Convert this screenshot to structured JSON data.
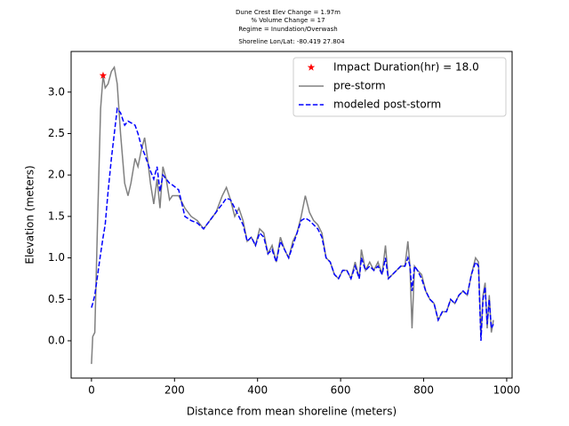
{
  "chart_data": {
    "type": "line",
    "title_lines": [
      "Dune Crest Elev Change = 1.97m",
      "% Volume Change = 17",
      "Regime = Inundation/Overwash",
      "Shoreline Lon/Lat: -80.419 27.804"
    ],
    "xlabel": "Distance from mean shoreline (meters)",
    "ylabel": "Elevation (meters)",
    "x": [
      0,
      3,
      8,
      15,
      22,
      28,
      33,
      40,
      48,
      55,
      62,
      70,
      80,
      88,
      95,
      105,
      112,
      120,
      128,
      135,
      142,
      150,
      158,
      165,
      172,
      180,
      188,
      195,
      210,
      225,
      240,
      255,
      270,
      285,
      300,
      315,
      325,
      335,
      345,
      355,
      365,
      375,
      385,
      395,
      405,
      415,
      425,
      435,
      445,
      455,
      465,
      475,
      485,
      495,
      505,
      515,
      525,
      535,
      545,
      555,
      565,
      575,
      585,
      595,
      605,
      615,
      625,
      635,
      645,
      650,
      660,
      670,
      680,
      690,
      700,
      708,
      715,
      725,
      735,
      745,
      755,
      762,
      767,
      772,
      778,
      785,
      795,
      805,
      815,
      825,
      835,
      845,
      855,
      865,
      875,
      885,
      895,
      905,
      915,
      925,
      932,
      938,
      943,
      948,
      953,
      958,
      963,
      968
    ],
    "series": [
      {
        "name": "pre-storm",
        "color": "#808080",
        "dash": false,
        "values": [
          -0.28,
          0.05,
          0.1,
          1.5,
          2.8,
          3.2,
          3.05,
          3.1,
          3.25,
          3.3,
          3.1,
          2.5,
          1.9,
          1.75,
          1.9,
          2.2,
          2.1,
          2.3,
          2.45,
          2.2,
          1.9,
          1.65,
          1.95,
          1.6,
          2.1,
          1.95,
          1.7,
          1.75,
          1.75,
          1.6,
          1.5,
          1.45,
          1.35,
          1.45,
          1.55,
          1.75,
          1.85,
          1.7,
          1.5,
          1.6,
          1.45,
          1.2,
          1.25,
          1.15,
          1.35,
          1.3,
          1.05,
          1.15,
          0.95,
          1.25,
          1.1,
          1.0,
          1.2,
          1.3,
          1.5,
          1.75,
          1.55,
          1.45,
          1.4,
          1.3,
          1.0,
          0.95,
          0.8,
          0.75,
          0.85,
          0.85,
          0.75,
          0.95,
          0.75,
          1.1,
          0.85,
          0.95,
          0.85,
          0.95,
          0.8,
          1.15,
          0.75,
          0.8,
          0.85,
          0.9,
          0.9,
          1.2,
          0.9,
          0.15,
          0.9,
          0.85,
          0.8,
          0.6,
          0.5,
          0.45,
          0.25,
          0.35,
          0.35,
          0.5,
          0.45,
          0.55,
          0.6,
          0.55,
          0.8,
          1.0,
          0.95,
          0.05,
          0.55,
          0.7,
          0.15,
          0.55,
          0.1,
          0.25
        ]
      },
      {
        "name": "modeled post-storm",
        "color": "#0000ff",
        "dash": true,
        "values": [
          0.4,
          0.45,
          0.55,
          0.8,
          1.05,
          1.25,
          1.4,
          1.8,
          2.2,
          2.5,
          2.8,
          2.75,
          2.6,
          2.65,
          2.63,
          2.6,
          2.5,
          2.35,
          2.25,
          2.15,
          2.05,
          1.95,
          2.1,
          1.8,
          2.0,
          1.95,
          1.9,
          1.88,
          1.82,
          1.5,
          1.45,
          1.42,
          1.35,
          1.45,
          1.55,
          1.65,
          1.72,
          1.7,
          1.6,
          1.5,
          1.4,
          1.2,
          1.25,
          1.15,
          1.3,
          1.25,
          1.05,
          1.1,
          0.95,
          1.2,
          1.1,
          1.0,
          1.15,
          1.3,
          1.45,
          1.48,
          1.45,
          1.4,
          1.35,
          1.25,
          1.0,
          0.95,
          0.8,
          0.75,
          0.85,
          0.85,
          0.75,
          0.9,
          0.75,
          1.0,
          0.85,
          0.9,
          0.85,
          0.9,
          0.8,
          1.0,
          0.75,
          0.8,
          0.85,
          0.9,
          0.9,
          1.0,
          0.9,
          0.6,
          0.9,
          0.85,
          0.75,
          0.6,
          0.5,
          0.45,
          0.25,
          0.35,
          0.35,
          0.5,
          0.45,
          0.55,
          0.6,
          0.55,
          0.8,
          0.95,
          0.9,
          0.0,
          0.5,
          0.65,
          0.2,
          0.5,
          0.15,
          0.2
        ]
      }
    ],
    "markers": [
      {
        "name": "Impact Duration(hr) = 18.0",
        "color": "#ff0000",
        "x": 28,
        "y": 3.2
      }
    ],
    "xlim": [
      -49,
      1013
    ],
    "ylim": [
      -0.45,
      3.49
    ],
    "xticks": [
      0,
      200,
      400,
      600,
      800,
      1000
    ],
    "yticks": [
      {
        "value": 0,
        "label": "0.0"
      },
      0.5,
      {
        "value": 1,
        "label": "1.0"
      },
      1.5,
      {
        "value": 2,
        "label": "2.0"
      },
      2.5,
      {
        "value": 3,
        "label": "3.0"
      }
    ],
    "grid": false
  }
}
